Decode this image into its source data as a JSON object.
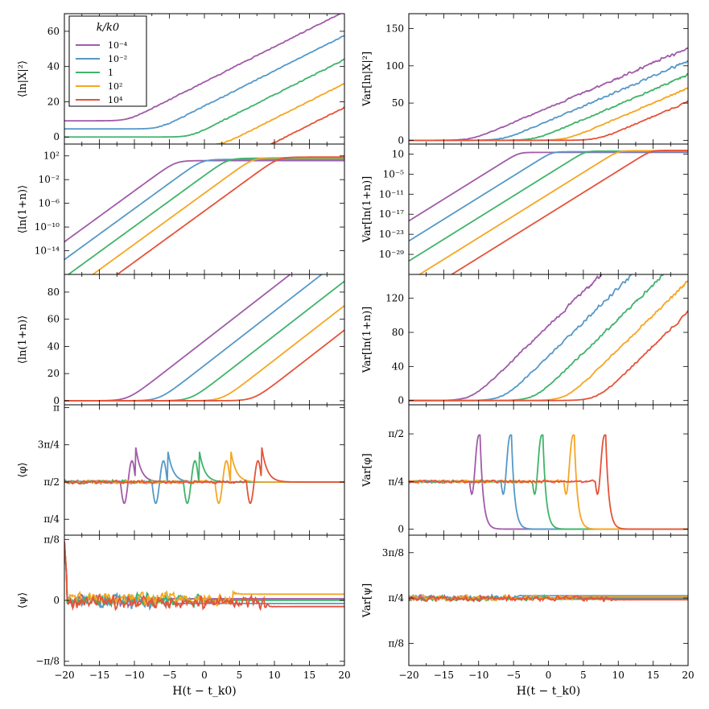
{
  "chart_data": {
    "type": "line",
    "figure": "Ensemble mean and variance of mode statistics vs time for several k/k0",
    "x_range": [
      -20,
      20
    ],
    "x_ticks": [
      "−20",
      "−15",
      "−10",
      "−5",
      "0",
      "5",
      "10",
      "15",
      "20"
    ],
    "xlabel": "H(t − t_k0)",
    "legend": {
      "title": "k/k0",
      "placement": "top-left of first panel",
      "entries": [
        {
          "label": "10^-4",
          "display": "10⁻⁴",
          "color": "#a05ca8",
          "t_cross": -11
        },
        {
          "label": "10^-2",
          "display": "10⁻²",
          "color": "#5599c8",
          "t_cross": -6.5
        },
        {
          "label": "1",
          "display": "1",
          "color": "#40b46a",
          "t_cross": -2
        },
        {
          "label": "10^2",
          "display": "10²",
          "color": "#f5a623",
          "t_cross": 2.5
        },
        {
          "label": "10^4",
          "display": "10⁴",
          "color": "#e5533a",
          "t_cross": 7
        }
      ]
    },
    "panels": [
      {
        "id": "mean_lnX2",
        "column": "left",
        "ylabel": "⟨ln|X|²⟩",
        "ylim": [
          -4,
          70
        ],
        "yticks": [
          {
            "v": 0,
            "t": "0"
          },
          {
            "v": 20,
            "t": "20"
          },
          {
            "v": 40,
            "t": "40"
          },
          {
            "v": 60,
            "t": "60"
          }
        ],
        "model": "lnX2",
        "plateaus": [
          9.2,
          4.6,
          0,
          -4.6,
          -9.2
        ],
        "slope": 2
      },
      {
        "id": "var_lnX2",
        "column": "right",
        "ylabel": "Var[ln|X|²]",
        "ylim": [
          -5,
          170
        ],
        "yticks": [
          {
            "v": 0,
            "t": "0"
          },
          {
            "v": 50,
            "t": "50"
          },
          {
            "v": 100,
            "t": "100"
          },
          {
            "v": 150,
            "t": "150"
          }
        ],
        "model": "var_lnX2",
        "slope": 4
      },
      {
        "id": "mean_ln1n_log",
        "column": "left",
        "ylabel": "⟨ln(1+n)⟩ (log scale)",
        "ylim": [
          -18,
          4
        ],
        "yticks": [
          {
            "v": 2,
            "t": "10²"
          },
          {
            "v": -2,
            "t": "10⁻²"
          },
          {
            "v": -6,
            "t": "10⁻⁶"
          },
          {
            "v": -10,
            "t": "10⁻¹⁰"
          },
          {
            "v": -14,
            "t": "10⁻¹⁴"
          }
        ],
        "model": "log_mean",
        "start_values": [
          -12.5,
          -15.5,
          -18.5,
          -21.5,
          -24.5
        ],
        "sat": [
          1.2,
          1.4,
          1.6,
          1.7,
          1.8
        ]
      },
      {
        "id": "var_ln1n_log",
        "column": "right",
        "ylabel": "Var[ln(1+n)] (log scale)",
        "ylim": [
          -35,
          4
        ],
        "yticks": [
          {
            "v": 1,
            "t": "10"
          },
          {
            "v": -5,
            "t": "10⁻⁵"
          },
          {
            "v": -11,
            "t": "10⁻¹¹"
          },
          {
            "v": -17,
            "t": "10⁻¹⁷"
          },
          {
            "v": -23,
            "t": "10⁻²³"
          },
          {
            "v": -29,
            "t": "10⁻²⁹"
          }
        ],
        "model": "log_var",
        "start_values": [
          -19,
          -25,
          -31,
          -37,
          -43
        ],
        "sat": [
          1.5,
          1.7,
          1.9,
          2.0,
          2.1
        ]
      },
      {
        "id": "mean_ln1n",
        "column": "left",
        "ylabel": "⟨ln(1+n)⟩",
        "ylim": [
          -3,
          93
        ],
        "yticks": [
          {
            "v": 0,
            "t": "0"
          },
          {
            "v": 20,
            "t": "20"
          },
          {
            "v": 40,
            "t": "40"
          },
          {
            "v": 60,
            "t": "60"
          },
          {
            "v": 80,
            "t": "80"
          }
        ],
        "model": "ln1n",
        "slope": 4
      },
      {
        "id": "var_ln1n",
        "column": "right",
        "ylabel": "Var[ln(1+n)]",
        "ylim": [
          -5,
          148
        ],
        "yticks": [
          {
            "v": 0,
            "t": "0"
          },
          {
            "v": 40,
            "t": "40"
          },
          {
            "v": 80,
            "t": "80"
          },
          {
            "v": 120,
            "t": "120"
          }
        ],
        "model": "var_lnX2",
        "slope": 8
      },
      {
        "id": "mean_phi",
        "column": "left",
        "ylabel": "⟨φ⟩",
        "ylim": [
          0.45,
          3.2
        ],
        "yticks": [
          {
            "v": 3.14159,
            "t": "π"
          },
          {
            "v": 2.35619,
            "t": "3π/4"
          },
          {
            "v": 1.5708,
            "t": "π/2"
          },
          {
            "v": 0.7854,
            "t": "π/4"
          }
        ],
        "model": "mean_phi",
        "baseline": 1.5708,
        "peak": 2.3
      },
      {
        "id": "var_phi",
        "column": "right",
        "ylabel": "Var[φ]",
        "ylim": [
          -0.1,
          2.05
        ],
        "yticks": [
          {
            "v": 1.5708,
            "t": "π/2"
          },
          {
            "v": 0.7854,
            "t": "π/4"
          },
          {
            "v": 0,
            "t": "0"
          }
        ],
        "model": "var_phi",
        "baseline": 0.785,
        "peak": 1.55
      },
      {
        "id": "mean_psi",
        "column": "left",
        "ylabel": "⟨ψ⟩",
        "ylim": [
          -0.42,
          0.42
        ],
        "yticks": [
          {
            "v": 0.3927,
            "t": "π/8"
          },
          {
            "v": 0,
            "t": "0"
          },
          {
            "v": -0.3927,
            "t": "−π/8"
          }
        ],
        "model": "mean_psi",
        "offsets": [
          0.01,
          -0.02,
          0.0,
          0.04,
          -0.04
        ]
      },
      {
        "id": "var_psi",
        "column": "right",
        "ylabel": "Var[ψ]",
        "ylim": [
          0.2,
          1.33
        ],
        "yticks": [
          {
            "v": 1.1781,
            "t": "3π/8"
          },
          {
            "v": 0.7854,
            "t": "π/4"
          },
          {
            "v": 0.3927,
            "t": "π/8"
          }
        ],
        "model": "var_psi",
        "offsets": [
          0.0,
          0.02,
          -0.01,
          0.01,
          -0.015
        ]
      }
    ]
  }
}
